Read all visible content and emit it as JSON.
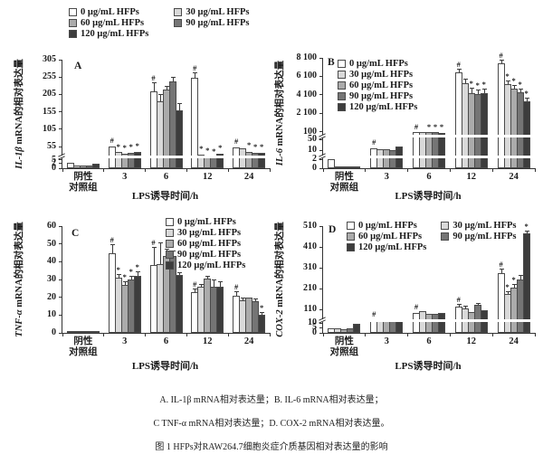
{
  "figure": {
    "caption_lines": [
      "A. IL-1β mRNA相对表达量；B. IL-6 mRNA相对表达量；",
      "C TNF-α mRNA相对表达量；D. COX-2 mRNA相对表达量。",
      "图 1 HFPs对RAW264.7细胞炎症介质基因相对表达量的影响"
    ]
  },
  "legend": {
    "items": [
      {
        "label": "0 μg/mL HFPs",
        "fill": "#ffffff"
      },
      {
        "label": "30 μg/mL HFPs",
        "fill": "#d9d9d9"
      },
      {
        "label": "60 μg/mL HFPs",
        "fill": "#ababab"
      },
      {
        "label": "90 μg/mL HFPs",
        "fill": "#757575"
      },
      {
        "label": "120 μg/mL HFPs",
        "fill": "#3d3d3d"
      }
    ],
    "border": "#4a4a4a"
  },
  "axis": {
    "x_title": "LPS诱导时间/h",
    "categories": [
      "阴性\n对照组",
      "3",
      "6",
      "12",
      "24"
    ]
  },
  "chart_data": [
    {
      "type": "bar",
      "panel": "A",
      "ylabel_em": "IL-1β",
      "ylabel_rest": " mRNA的相对表达量",
      "xlabel": "LPS诱导时间/h",
      "categories": [
        "阴性对照组",
        "3",
        "6",
        "12",
        "24"
      ],
      "ylim": [
        0,
        305
      ],
      "yticks": [
        {
          "v": 0,
          "label": "0"
        },
        {
          "v": 2,
          "label": "2"
        },
        {
          "v": 5,
          "label": "5"
        },
        {
          "v": 55,
          "label": "55"
        },
        {
          "v": 105,
          "label": "105"
        },
        {
          "v": 155,
          "label": "155"
        },
        {
          "v": 205,
          "label": "205"
        },
        {
          "v": 255,
          "label": "255"
        },
        {
          "v": 305,
          "label": "305"
        }
      ],
      "scale": [
        {
          "v": 0,
          "f": 0
        },
        {
          "v": 2,
          "f": 0.042
        },
        {
          "v": 5,
          "f": 0.078
        },
        {
          "v": 55,
          "f": 0.2
        },
        {
          "v": 305,
          "f": 1
        }
      ],
      "breaks": [
        0.105
      ],
      "legend_layout": "outside-two",
      "groups": [
        {
          "values": [
            3,
            1,
            1,
            1,
            2
          ],
          "errors": [
            0.5,
            0.3,
            0.3,
            0.3,
            0.4
          ],
          "marks": [
            "",
            "",
            "",
            "",
            ""
          ]
        },
        {
          "values": [
            54,
            33,
            27,
            30,
            34
          ],
          "errors": [
            4,
            3,
            3,
            3,
            3
          ],
          "marks": [
            "#",
            "*",
            "*",
            "*",
            "*"
          ]
        },
        {
          "values": [
            215,
            185,
            220,
            242,
            160
          ],
          "errors": [
            22,
            18,
            8,
            10,
            18
          ],
          "marks": [
            "#",
            "",
            "",
            "",
            ""
          ]
        },
        {
          "values": [
            252,
            23,
            18,
            14,
            28
          ],
          "errors": [
            15,
            4,
            3,
            3,
            4
          ],
          "marks": [
            "#",
            "*",
            "*",
            "*",
            "*"
          ]
        },
        {
          "values": [
            50,
            47,
            36,
            31,
            30
          ],
          "errors": [
            4,
            4,
            4,
            3,
            3
          ],
          "marks": [
            "#",
            "",
            "*",
            "*",
            "*"
          ]
        }
      ]
    },
    {
      "type": "bar",
      "panel": "B",
      "ylabel_em": "IL-6",
      "ylabel_rest": " mRNA的相对表达量",
      "xlabel": "LPS诱导时间/h",
      "categories": [
        "阴性对照组",
        "3",
        "6",
        "12",
        "24"
      ],
      "ylim": [
        0,
        8100
      ],
      "yticks": [
        {
          "v": 0,
          "label": "0"
        },
        {
          "v": 2,
          "label": "2"
        },
        {
          "v": 10,
          "label": "10"
        },
        {
          "v": 50,
          "label": "50"
        },
        {
          "v": 100,
          "label": "100"
        },
        {
          "v": 2100,
          "label": "2 100"
        },
        {
          "v": 4100,
          "label": "4 100"
        },
        {
          "v": 6100,
          "label": "6 100"
        },
        {
          "v": 8100,
          "label": "8 100"
        }
      ],
      "scale": [
        {
          "v": 0,
          "f": 0
        },
        {
          "v": 2,
          "f": 0.08
        },
        {
          "v": 10,
          "f": 0.16
        },
        {
          "v": 50,
          "f": 0.26
        },
        {
          "v": 100,
          "f": 0.33
        },
        {
          "v": 2100,
          "f": 0.5
        },
        {
          "v": 8100,
          "f": 1
        }
      ],
      "breaks": [
        0.105,
        0.29
      ],
      "legend_layout": "inline-one",
      "groups": [
        {
          "values": [
            2,
            0.3,
            0.3,
            0.3,
            0.5
          ],
          "errors": [
            0.4,
            0,
            0,
            0,
            0
          ],
          "marks": [
            "",
            "",
            "",
            "",
            ""
          ]
        },
        {
          "values": [
            18,
            16,
            14,
            13,
            24
          ],
          "errors": [
            3,
            2,
            2,
            2,
            2
          ],
          "marks": [
            "#",
            "",
            "",
            "",
            ""
          ]
        },
        {
          "values": [
            110,
            106,
            98,
            106,
            92
          ],
          "errors": [
            6,
            5,
            5,
            5,
            5
          ],
          "marks": [
            "#",
            "",
            "*",
            "*",
            "*"
          ]
        },
        {
          "values": [
            6500,
            5300,
            4300,
            4200,
            4300
          ],
          "errors": [
            300,
            400,
            500,
            350,
            350
          ],
          "marks": [
            "#",
            "",
            "*",
            "*",
            "*"
          ]
        },
        {
          "values": [
            7500,
            5200,
            4800,
            4400,
            3400
          ],
          "errors": [
            350,
            300,
            250,
            250,
            250
          ],
          "marks": [
            "#",
            "*",
            "*",
            "*",
            "*"
          ]
        }
      ]
    },
    {
      "type": "bar",
      "panel": "C",
      "ylabel_em": "TNF-α",
      "ylabel_rest": " mRNA的相对表达量",
      "xlabel": "LPS诱导时间/h",
      "categories": [
        "阴性对照组",
        "3",
        "6",
        "12",
        "24"
      ],
      "ylim": [
        0,
        60
      ],
      "yticks": [
        {
          "v": 0,
          "label": "0"
        },
        {
          "v": 10,
          "label": "10"
        },
        {
          "v": 20,
          "label": "20"
        },
        {
          "v": 30,
          "label": "30"
        },
        {
          "v": 40,
          "label": "40"
        },
        {
          "v": 50,
          "label": "50"
        },
        {
          "v": 60,
          "label": "60"
        }
      ],
      "scale": [
        {
          "v": 0,
          "f": 0
        },
        {
          "v": 60,
          "f": 1
        }
      ],
      "breaks": [],
      "legend_layout": "inline-one",
      "groups": [
        {
          "values": [
            1,
            1,
            1.2,
            1,
            1
          ],
          "errors": [
            0.2,
            0.2,
            0.2,
            0.2,
            0.2
          ],
          "marks": [
            "",
            "",
            "",
            "",
            ""
          ]
        },
        {
          "values": [
            45,
            31,
            27,
            30,
            32
          ],
          "errors": [
            4.5,
            1.5,
            1.5,
            1.5,
            2
          ],
          "marks": [
            "#",
            "*",
            "*",
            "*",
            "*"
          ]
        },
        {
          "values": [
            38,
            38.5,
            43,
            43,
            32.5
          ],
          "errors": [
            10,
            12,
            4,
            3,
            1
          ],
          "marks": [
            "#",
            "",
            "",
            "",
            ""
          ]
        },
        {
          "values": [
            23,
            26,
            30.5,
            26,
            26
          ],
          "errors": [
            1.5,
            0.8,
            1,
            3.5,
            2.5
          ],
          "marks": [
            "#",
            "",
            "",
            "",
            ""
          ]
        },
        {
          "values": [
            21,
            18.5,
            20,
            18,
            10
          ],
          "errors": [
            2,
            1,
            0.7,
            0.8,
            1
          ],
          "marks": [
            "#",
            "",
            "",
            "",
            "*"
          ]
        }
      ]
    },
    {
      "type": "bar",
      "panel": "D",
      "ylabel_em": "COX-2",
      "ylabel_rest": " mRNA的相对表达量",
      "xlabel": "LPS诱导时间/h",
      "categories": [
        "阴性对照组",
        "3",
        "6",
        "12",
        "24"
      ],
      "ylim": [
        0,
        510
      ],
      "yticks": [
        {
          "v": 0,
          "label": "0"
        },
        {
          "v": 5,
          "label": "5"
        },
        {
          "v": 10,
          "label": "10"
        },
        {
          "v": 110,
          "label": "110"
        },
        {
          "v": 210,
          "label": "210"
        },
        {
          "v": 310,
          "label": "310"
        },
        {
          "v": 410,
          "label": "410"
        },
        {
          "v": 510,
          "label": "510"
        }
      ],
      "scale": [
        {
          "v": 0,
          "f": 0
        },
        {
          "v": 5,
          "f": 0.05
        },
        {
          "v": 10,
          "f": 0.09
        },
        {
          "v": 110,
          "f": 0.22
        },
        {
          "v": 510,
          "f": 1
        }
      ],
      "breaks": [
        0.115
      ],
      "legend_layout": "inline-two",
      "groups": [
        {
          "values": [
            4,
            4,
            3,
            4,
            9
          ],
          "errors": [
            1,
            1,
            1,
            1,
            1.5
          ],
          "marks": [
            "",
            "",
            "",
            "",
            ""
          ]
        },
        {
          "values": [
            36,
            33,
            31,
            31,
            34
          ],
          "errors": [
            3,
            2,
            2,
            2,
            2
          ],
          "marks": [
            "#",
            "",
            "",
            "",
            ""
          ]
        },
        {
          "values": [
            85,
            95,
            75,
            80,
            85
          ],
          "errors": [
            6,
            6,
            5,
            5,
            5
          ],
          "marks": [
            "#",
            "",
            "",
            "",
            ""
          ]
        },
        {
          "values": [
            125,
            115,
            92,
            130,
            105
          ],
          "errors": [
            8,
            7,
            6,
            8,
            7
          ],
          "marks": [
            "#",
            "",
            "",
            "",
            ""
          ]
        },
        {
          "values": [
            285,
            182,
            215,
            255,
            475
          ],
          "errors": [
            18,
            12,
            12,
            15,
            10
          ],
          "marks": [
            "#",
            "*",
            "*",
            "",
            "*"
          ]
        }
      ]
    }
  ]
}
